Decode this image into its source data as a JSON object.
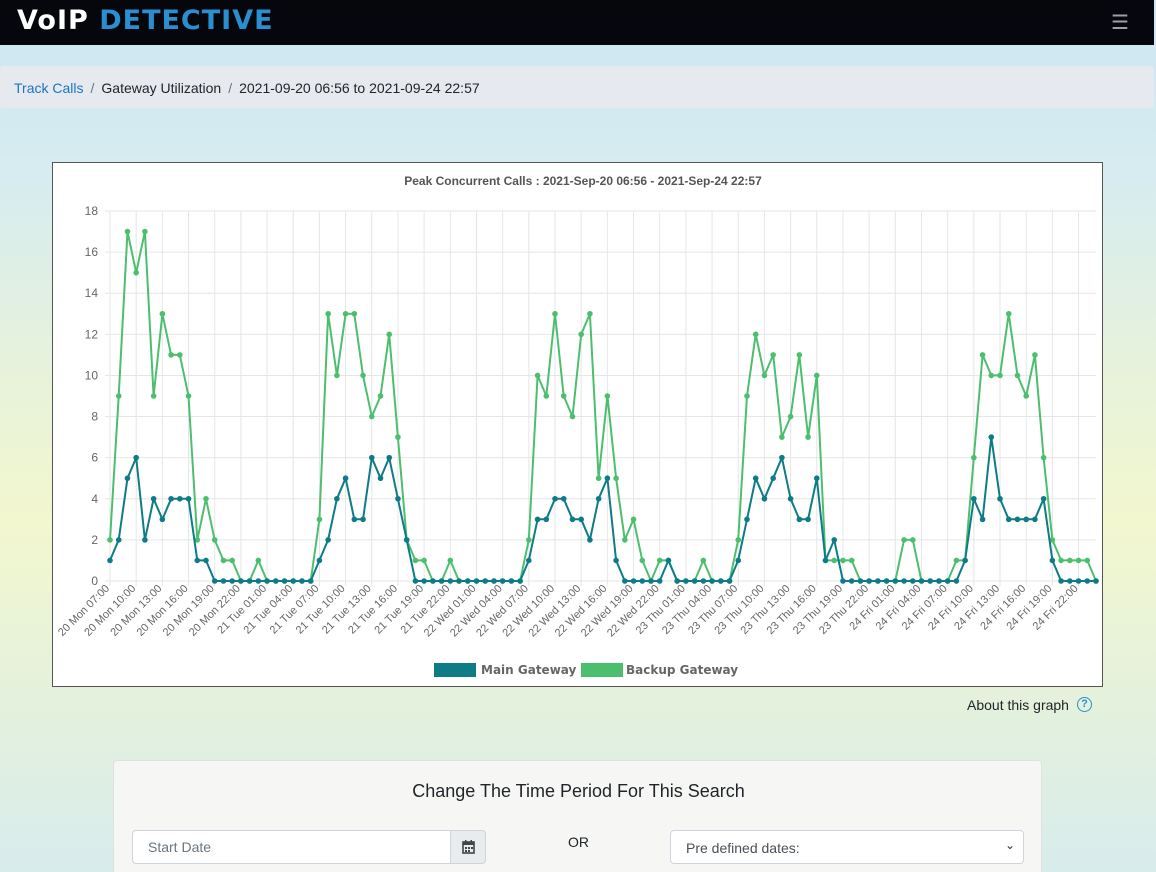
{
  "header": {
    "logo_part1": "VoIP",
    "logo_part2": "DETECTIVE",
    "menu_icon": "hamburger-icon"
  },
  "breadcrumb": {
    "items": [
      "Track Calls",
      "Gateway Utilization",
      "2021-09-20 06:56 to 2021-09-24 22:57"
    ]
  },
  "chart_data": {
    "type": "line",
    "title": "Peak Concurrent Calls : 2021-Sep-20 06:56 - 2021-Sep-24 22:57",
    "ylim": [
      0,
      18
    ],
    "yticks": [
      0,
      2,
      4,
      6,
      8,
      10,
      12,
      14,
      16,
      18
    ],
    "grid": true,
    "legend_position": "bottom",
    "tick_labels": [
      "20 Mon 07:00",
      "20 Mon 10:00",
      "20 Mon 13:00",
      "20 Mon 16:00",
      "20 Mon 19:00",
      "20 Mon 22:00",
      "21 Tue 01:00",
      "21 Tue 04:00",
      "21 Tue 07:00",
      "21 Tue 10:00",
      "21 Tue 13:00",
      "21 Tue 16:00",
      "21 Tue 19:00",
      "21 Tue 22:00",
      "22 Wed 01:00",
      "22 Wed 04:00",
      "22 Wed 07:00",
      "22 Wed 10:00",
      "22 Wed 13:00",
      "22 Wed 16:00",
      "22 Wed 19:00",
      "22 Wed 22:00",
      "23 Thu 01:00",
      "23 Thu 04:00",
      "23 Thu 07:00",
      "23 Thu 10:00",
      "23 Thu 13:00",
      "23 Thu 16:00",
      "23 Thu 19:00",
      "23 Thu 22:00",
      "24 Fri 01:00",
      "24 Fri 04:00",
      "24 Fri 07:00",
      "24 Fri 10:00",
      "24 Fri 13:00",
      "24 Fri 16:00",
      "24 Fri 19:00",
      "24 Fri 22:00"
    ],
    "series": [
      {
        "name": "Main Gateway",
        "color": "#0e7c86",
        "values": [
          1,
          2,
          5,
          6,
          2,
          4,
          3,
          4,
          4,
          4,
          1,
          1,
          0,
          0,
          0,
          0,
          0,
          0,
          0,
          0,
          0,
          0,
          0,
          0,
          1,
          2,
          4,
          5,
          3,
          3,
          6,
          5,
          6,
          4,
          2,
          0,
          0,
          0,
          0,
          0,
          0,
          0,
          0,
          0,
          0,
          0,
          0,
          0,
          1,
          3,
          3,
          4,
          4,
          3,
          3,
          2,
          4,
          5,
          1,
          0,
          0,
          0,
          0,
          0,
          1,
          0,
          0,
          0,
          0,
          0,
          0,
          0,
          1,
          3,
          5,
          4,
          5,
          6,
          4,
          3,
          3,
          5,
          1,
          2,
          0,
          0,
          0,
          0,
          0,
          0,
          0,
          0,
          0,
          0,
          0,
          0,
          0,
          0,
          1,
          4,
          3,
          7,
          4,
          3,
          3,
          3,
          3,
          4,
          1,
          0,
          0,
          0,
          0,
          0
        ]
      },
      {
        "name": "Backup Gateway",
        "color": "#4cbf6e",
        "values": [
          2,
          9,
          17,
          15,
          17,
          9,
          13,
          11,
          11,
          9,
          2,
          4,
          2,
          1,
          1,
          0,
          0,
          1,
          0,
          0,
          0,
          0,
          0,
          0,
          3,
          13,
          10,
          13,
          13,
          10,
          8,
          9,
          12,
          7,
          2,
          1,
          1,
          0,
          0,
          1,
          0,
          0,
          0,
          0,
          0,
          0,
          0,
          0,
          2,
          10,
          9,
          13,
          9,
          8,
          12,
          13,
          5,
          9,
          5,
          2,
          3,
          1,
          0,
          1,
          1,
          0,
          0,
          0,
          1,
          0,
          0,
          0,
          2,
          9,
          12,
          10,
          11,
          7,
          8,
          11,
          7,
          10,
          1,
          1,
          1,
          1,
          0,
          0,
          0,
          0,
          0,
          2,
          2,
          0,
          0,
          0,
          0,
          1,
          1,
          6,
          11,
          10,
          10,
          13,
          10,
          9,
          11,
          6,
          2,
          1,
          1,
          1,
          1,
          0
        ]
      }
    ]
  },
  "about": {
    "label": "About this graph",
    "icon": "help-icon"
  },
  "panel": {
    "title": "Change The Time Period For This Search",
    "start_placeholder": "Start Date",
    "or_label": "OR",
    "select_value": "Pre defined dates:"
  }
}
